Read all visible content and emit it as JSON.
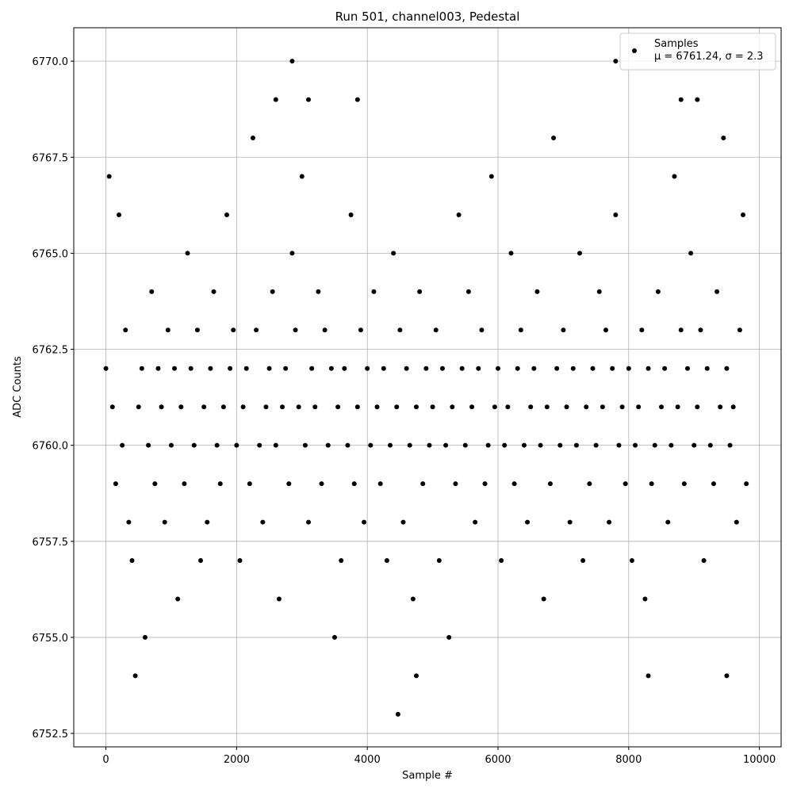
{
  "chart_data": {
    "type": "scatter",
    "title": "Run 501, channel003, Pedestal",
    "xlabel": "Sample #",
    "ylabel": "ADC Counts",
    "xlim": [
      -492,
      10332
    ],
    "ylim": [
      6752.15,
      6770.87
    ],
    "xticks": [
      0,
      2000,
      4000,
      6000,
      8000,
      10000
    ],
    "yticks": [
      {
        "value": 6752.5,
        "label": "6752.5"
      },
      {
        "value": 6755,
        "label": "6755.0"
      },
      {
        "value": 6757.5,
        "label": "6757.5"
      },
      {
        "value": 6760,
        "label": "6760.0"
      },
      {
        "value": 6762.5,
        "label": "6762.5"
      },
      {
        "value": 6765,
        "label": "6765.0"
      },
      {
        "value": 6767.5,
        "label": "6767.5"
      },
      {
        "value": 6770,
        "label": "6770.0"
      }
    ],
    "grid": true,
    "legend": "upper right",
    "annotation": "μ = 6761.24, σ = 2.3",
    "series": [
      {
        "name": "Samples",
        "color": "#000000",
        "x": [
          0,
          50,
          100,
          150,
          200,
          250,
          300,
          350,
          400,
          450,
          500,
          550,
          600,
          650,
          700,
          750,
          800,
          850,
          900,
          950,
          1000,
          1050,
          1100,
          1150,
          1200,
          1250,
          1300,
          1350,
          1400,
          1450,
          1500,
          1550,
          1600,
          1650,
          1700,
          1750,
          1800,
          1850,
          1900,
          1950,
          2000,
          2050,
          2100,
          2150,
          2200,
          2250,
          2300,
          2350,
          2400,
          2450,
          2500,
          2550,
          2600,
          2650,
          2700,
          2750,
          2800,
          2850,
          2900,
          2950,
          3000,
          3050,
          3100,
          3150,
          3200,
          3250,
          3300,
          3350,
          3400,
          3450,
          3500,
          3550,
          3600,
          3650,
          3700,
          3750,
          3800,
          3850,
          3900,
          3950,
          4000,
          4050,
          4100,
          4150,
          4200,
          4250,
          4300,
          4350,
          4400,
          4450,
          4500,
          4550,
          4600,
          4650,
          4700,
          4750,
          4800,
          4850,
          4900,
          4950,
          5000,
          5050,
          5100,
          5150,
          5200,
          5250,
          5300,
          5350,
          5400,
          5450,
          5500,
          5550,
          5600,
          5650,
          5700,
          5750,
          5800,
          5850,
          5900,
          5950,
          6000,
          6050,
          6100,
          6150,
          6200,
          6250,
          6300,
          6350,
          6400,
          6450,
          6500,
          6550,
          6600,
          6650,
          6700,
          6750,
          6800,
          6850,
          6900,
          6950,
          7000,
          7050,
          7100,
          7150,
          7200,
          7250,
          7300,
          7350,
          7400,
          7450,
          7500,
          7550,
          7600,
          7650,
          7700,
          7750,
          7800,
          7850,
          7900,
          7950,
          8000,
          8050,
          8100,
          8150,
          8200,
          8250,
          8300,
          8350,
          8400,
          8450,
          8500,
          8550,
          8600,
          8650,
          8700,
          8750,
          8800,
          8850,
          8900,
          8950,
          9000,
          9050,
          9100,
          9150,
          9200,
          9250,
          9300,
          9350,
          9400,
          9450,
          9500,
          9550,
          9600,
          9650,
          9700,
          9750,
          9800,
          2850,
          7800,
          4470,
          2600,
          3100,
          3850,
          8800,
          9050,
          4750,
          8300,
          9500
        ],
        "values": [
          6762,
          6767,
          6761,
          6759,
          6766,
          6760,
          6763,
          6758,
          6757,
          6754,
          6761,
          6762,
          6755,
          6760,
          6764,
          6759,
          6762,
          6761,
          6758,
          6763,
          6760,
          6762,
          6756,
          6761,
          6759,
          6765,
          6762,
          6760,
          6763,
          6757,
          6761,
          6758,
          6762,
          6764,
          6760,
          6759,
          6761,
          6766,
          6762,
          6763,
          6760,
          6757,
          6761,
          6762,
          6759,
          6768,
          6763,
          6760,
          6758,
          6761,
          6762,
          6764,
          6760,
          6756,
          6761,
          6762,
          6759,
          6765,
          6763,
          6761,
          6767,
          6760,
          6758,
          6762,
          6761,
          6764,
          6759,
          6763,
          6760,
          6762,
          6755,
          6761,
          6757,
          6762,
          6760,
          6766,
          6759,
          6761,
          6763,
          6758,
          6762,
          6760,
          6764,
          6761,
          6759,
          6762,
          6757,
          6760,
          6765,
          6761,
          6763,
          6758,
          6762,
          6760,
          6756,
          6761,
          6764,
          6759,
          6762,
          6760,
          6761,
          6763,
          6757,
          6762,
          6760,
          6755,
          6761,
          6759,
          6766,
          6762,
          6760,
          6764,
          6761,
          6758,
          6762,
          6763,
          6759,
          6760,
          6767,
          6761,
          6762,
          6757,
          6760,
          6761,
          6765,
          6759,
          6762,
          6763,
          6760,
          6758,
          6761,
          6762,
          6764,
          6760,
          6756,
          6761,
          6759,
          6768,
          6762,
          6760,
          6763,
          6761,
          6758,
          6762,
          6760,
          6765,
          6757,
          6761,
          6759,
          6762,
          6760,
          6764,
          6761,
          6763,
          6758,
          6762,
          6766,
          6760,
          6761,
          6759,
          6762,
          6757,
          6760,
          6761,
          6763,
          6756,
          6762,
          6759,
          6760,
          6764,
          6761,
          6762,
          6758,
          6760,
          6767,
          6761,
          6763,
          6759,
          6762,
          6765,
          6760,
          6761,
          6763,
          6757,
          6762,
          6760,
          6759,
          6764,
          6761,
          6768,
          6762,
          6760,
          6761,
          6758,
          6763,
          6766,
          6759,
          6770,
          6770,
          6753,
          6769,
          6769,
          6769,
          6769,
          6769,
          6754,
          6754,
          6754
        ]
      }
    ]
  }
}
